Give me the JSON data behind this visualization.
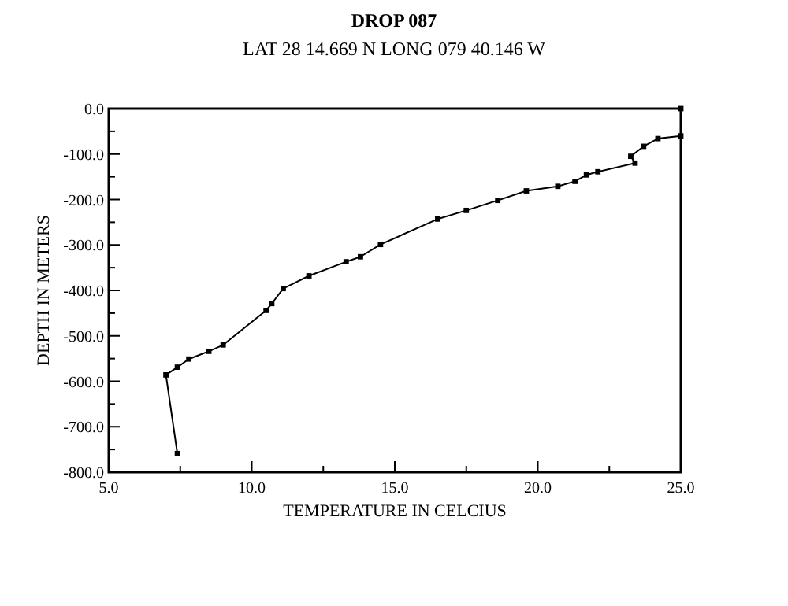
{
  "chart_data": {
    "type": "line",
    "title": "DROP 087",
    "subtitle": "LAT 28 14.669 N  LONG 079 40.146 W",
    "xlabel": "TEMPERATURE IN CELCIUS",
    "ylabel": "DEPTH IN METERS",
    "series": [
      {
        "color": "#000000",
        "x": [
          25.0,
          25.0,
          24.2,
          23.7,
          23.25,
          23.4,
          22.1,
          21.7,
          21.3,
          20.7,
          19.6,
          18.6,
          17.5,
          16.5,
          14.5,
          13.8,
          13.3,
          12.0,
          11.1,
          10.7,
          10.5,
          9.0,
          8.5,
          7.8,
          7.4,
          7.0,
          7.4
        ],
        "values": [
          0,
          -60,
          -66,
          -83,
          -105,
          -120,
          -139,
          -146,
          -160,
          -171,
          -181,
          -202,
          -224,
          -243,
          -299,
          -326,
          -337,
          -368,
          -396,
          -429,
          -444,
          -520,
          -534,
          -551,
          -569,
          -586,
          -759
        ]
      }
    ],
    "marker": "square",
    "line_style": "solid",
    "xlim": [
      5,
      25
    ],
    "ylim": [
      -800,
      0
    ],
    "xticks": [
      {
        "value": 5,
        "label": "5.0"
      },
      {
        "value": 7.5,
        "label": null
      },
      {
        "value": 10,
        "label": "10.0"
      },
      {
        "value": 12.5,
        "label": null
      },
      {
        "value": 15,
        "label": "15.0"
      },
      {
        "value": 17.5,
        "label": null
      },
      {
        "value": 20,
        "label": "20.0"
      },
      {
        "value": 22.5,
        "label": null
      },
      {
        "value": 25,
        "label": "25.0"
      }
    ],
    "yticks": [
      {
        "value": -800,
        "label": "-800.0"
      },
      {
        "value": -750,
        "label": null
      },
      {
        "value": -700,
        "label": "-700.0"
      },
      {
        "value": -650,
        "label": null
      },
      {
        "value": -600,
        "label": "-600.0"
      },
      {
        "value": -550,
        "label": null
      },
      {
        "value": -500,
        "label": "-500.0"
      },
      {
        "value": -450,
        "label": null
      },
      {
        "value": -400,
        "label": "-400.0"
      },
      {
        "value": -350,
        "label": null
      },
      {
        "value": -300,
        "label": "-300.0"
      },
      {
        "value": -250,
        "label": null
      },
      {
        "value": -200,
        "label": "-200.0"
      },
      {
        "value": -150,
        "label": null
      },
      {
        "value": -100,
        "label": "-100.0"
      },
      {
        "value": -50,
        "label": null
      },
      {
        "value": 0,
        "label": "0.0"
      }
    ]
  }
}
